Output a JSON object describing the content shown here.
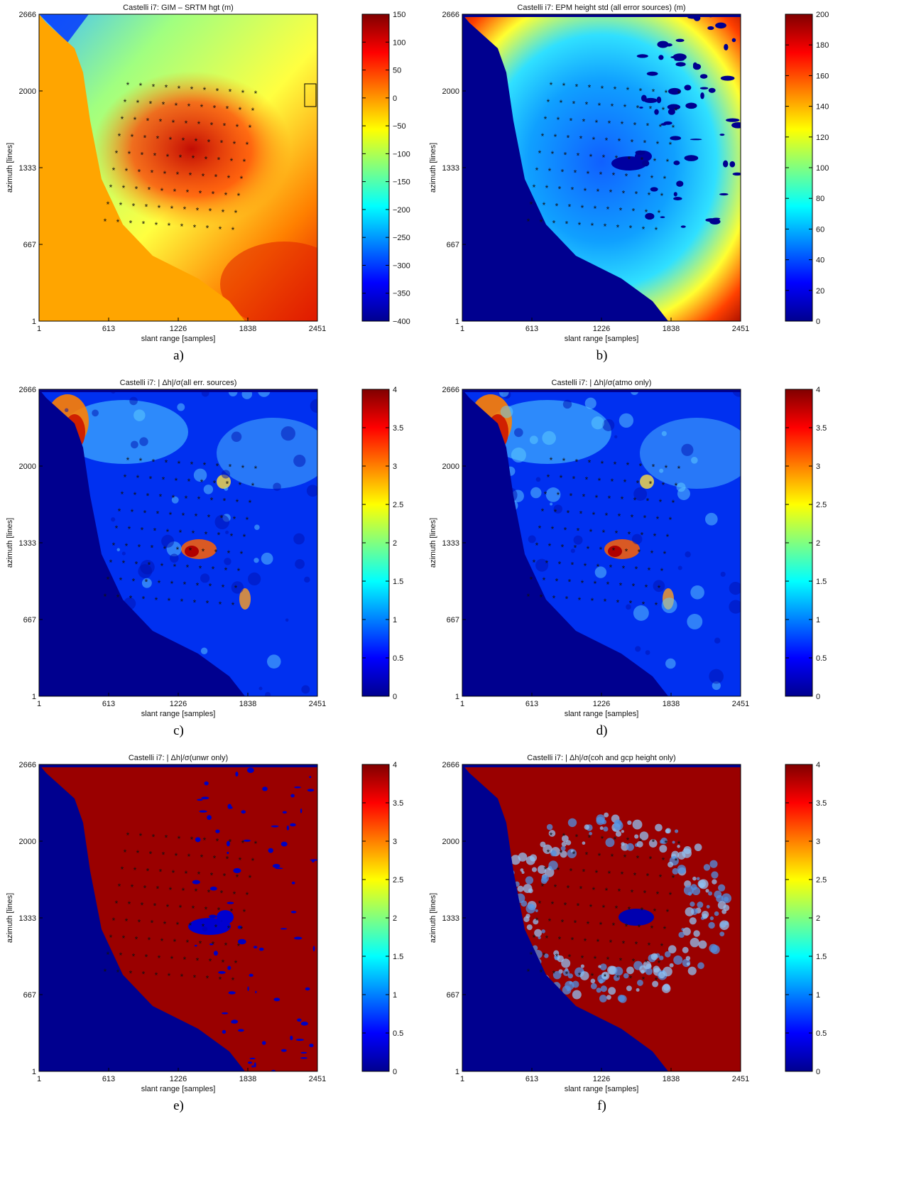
{
  "chart_data": [
    {
      "type": "heatmap",
      "panel_label": "a)",
      "title": "Castelli i7: GIM – SRTM hgt (m)",
      "xlabel": "slant range [samples]",
      "ylabel": "azimuth [lines]",
      "xticks": [
        "1",
        "613",
        "1226",
        "1838",
        "2451"
      ],
      "yticks": [
        "1",
        "667",
        "1333",
        "2000",
        "2666"
      ],
      "colorbar_ticks": [
        "150",
        "100",
        "50",
        "0",
        "−50",
        "−100",
        "−150",
        "−200",
        "−250",
        "−300",
        "−350",
        "−400"
      ],
      "clim": [
        -400,
        150
      ],
      "scheme": "gim",
      "has_box": true
    },
    {
      "type": "heatmap",
      "panel_label": "b)",
      "title": "Castelli i7: EPM height std (all error sources) (m)",
      "xlabel": "slant range [samples]",
      "ylabel": "azimuth [lines]",
      "xticks": [
        "1",
        "613",
        "1226",
        "1838",
        "2451"
      ],
      "yticks": [
        "1",
        "667",
        "1333",
        "2000",
        "2666"
      ],
      "colorbar_ticks": [
        "200",
        "180",
        "160",
        "140",
        "120",
        "100",
        "80",
        "60",
        "40",
        "20",
        "0"
      ],
      "clim": [
        0,
        200
      ],
      "scheme": "std"
    },
    {
      "type": "heatmap",
      "panel_label": "c)",
      "title": "Castelli i7: | Δh|/σ(all err. sources)",
      "xlabel": "slant range [samples]",
      "ylabel": "azimuth [lines]",
      "xticks": [
        "1",
        "613",
        "1226",
        "1838",
        "2451"
      ],
      "yticks": [
        "1",
        "667",
        "1333",
        "2000",
        "2666"
      ],
      "colorbar_ticks": [
        "4",
        "3.5",
        "3",
        "2.5",
        "2",
        "1.5",
        "1",
        "0.5",
        "0"
      ],
      "clim": [
        0,
        4
      ],
      "scheme": "ratio_low"
    },
    {
      "type": "heatmap",
      "panel_label": "d)",
      "title": "Castelli i7: | Δh|/σ(atmo only)",
      "xlabel": "slant range [samples]",
      "ylabel": "azimuth [lines]",
      "xticks": [
        "1",
        "613",
        "1226",
        "1838",
        "2451"
      ],
      "yticks": [
        "1",
        "667",
        "1333",
        "2000",
        "2666"
      ],
      "colorbar_ticks": [
        "4",
        "3.5",
        "3",
        "2.5",
        "2",
        "1.5",
        "1",
        "0.5",
        "0"
      ],
      "clim": [
        0,
        4
      ],
      "scheme": "ratio_low"
    },
    {
      "type": "heatmap",
      "panel_label": "e)",
      "title": "Castelli i7: | Δh|/σ(unwr only)",
      "xlabel": "slant range [samples]",
      "ylabel": "azimuth [lines]",
      "xticks": [
        "1",
        "613",
        "1226",
        "1838",
        "2451"
      ],
      "yticks": [
        "1",
        "667",
        "1333",
        "2000",
        "2666"
      ],
      "colorbar_ticks": [
        "4",
        "3.5",
        "3",
        "2.5",
        "2",
        "1.5",
        "1",
        "0.5",
        "0"
      ],
      "clim": [
        0,
        4
      ],
      "scheme": "ratio_high"
    },
    {
      "type": "heatmap",
      "panel_label": "f)",
      "title": "Castelli i7: | Δh|/σ(coh and gcp height only)",
      "xlabel": "slant range [samples]",
      "ylabel": "azimuth [lines]",
      "xticks": [
        "1",
        "613",
        "1226",
        "1838",
        "2451"
      ],
      "yticks": [
        "1",
        "667",
        "1333",
        "2000",
        "2666"
      ],
      "colorbar_ticks": [
        "4",
        "3.5",
        "3",
        "2.5",
        "2",
        "1.5",
        "1",
        "0.5",
        "0"
      ],
      "clim": [
        0,
        4
      ],
      "scheme": "ratio_coh"
    }
  ]
}
